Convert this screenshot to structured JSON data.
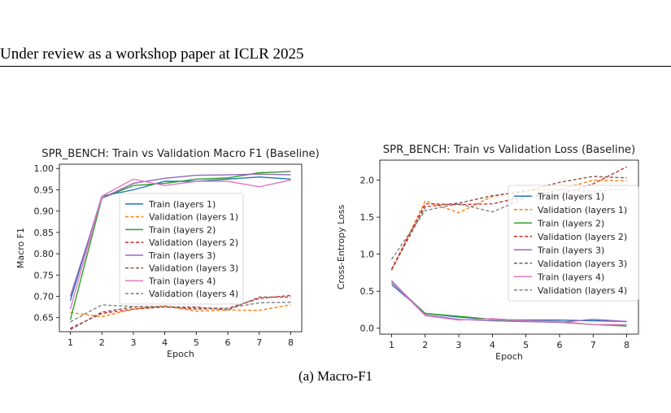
{
  "header": {
    "text": "Under review as a workshop paper at ICLR 2025"
  },
  "caption": {
    "text": "(a)  Macro-F1"
  },
  "chart_data": [
    {
      "type": "line",
      "title": "SPR_BENCH: Train vs Validation Macro F1 (Baseline)",
      "xlabel": "Epoch",
      "ylabel": "Macro F1",
      "x": [
        1,
        2,
        3,
        4,
        5,
        6,
        7,
        8
      ],
      "xlim": [
        0.65,
        8.35
      ],
      "ylim": [
        0.617,
        1.01
      ],
      "yticks": [
        0.65,
        0.7,
        0.75,
        0.8,
        0.85,
        0.9,
        0.95,
        1.0
      ],
      "ytick_labels": [
        "0.65",
        "0.70",
        "0.75",
        "0.80",
        "0.85",
        "0.90",
        "0.95",
        "1.00"
      ],
      "xticks": [
        1,
        2,
        3,
        4,
        5,
        6,
        7,
        8
      ],
      "legend_position": "center",
      "series": [
        {
          "name": "Train (layers 1)",
          "color": "#1f77b4",
          "style": "solid",
          "values": [
            0.69,
            0.935,
            0.95,
            0.97,
            0.97,
            0.975,
            0.98,
            0.975
          ]
        },
        {
          "name": "Validation (layers 1)",
          "color": "#ff7f0e",
          "style": "dashed",
          "values": [
            0.662,
            0.652,
            0.67,
            0.678,
            0.665,
            0.668,
            0.667,
            0.68
          ]
        },
        {
          "name": "Train (layers 2)",
          "color": "#2ca02c",
          "style": "solid",
          "values": [
            0.645,
            0.93,
            0.96,
            0.965,
            0.975,
            0.978,
            0.99,
            0.993
          ]
        },
        {
          "name": "Validation (layers 2)",
          "color": "#d62728",
          "style": "dashed",
          "values": [
            0.625,
            0.66,
            0.67,
            0.675,
            0.67,
            0.672,
            0.695,
            0.702
          ]
        },
        {
          "name": "Train (layers 3)",
          "color": "#9467bd",
          "style": "solid",
          "values": [
            0.7,
            0.93,
            0.965,
            0.977,
            0.984,
            0.985,
            0.987,
            0.985
          ]
        },
        {
          "name": "Validation (layers 3)",
          "color": "#8c564b",
          "style": "dashed",
          "values": [
            0.622,
            0.663,
            0.675,
            0.675,
            0.675,
            0.668,
            0.698,
            0.698
          ]
        },
        {
          "name": "Train (layers 4)",
          "color": "#e377c2",
          "style": "solid",
          "values": [
            0.67,
            0.935,
            0.975,
            0.96,
            0.97,
            0.97,
            0.957,
            0.973
          ]
        },
        {
          "name": "Validation (layers 4)",
          "color": "#7f7f7f",
          "style": "dashed",
          "values": [
            0.64,
            0.68,
            0.676,
            0.676,
            0.673,
            0.672,
            0.685,
            0.686
          ]
        }
      ]
    },
    {
      "type": "line",
      "title": "SPR_BENCH: Train vs Validation Loss (Baseline)",
      "xlabel": "Epoch",
      "ylabel": "Cross-Entropy Loss",
      "x": [
        1,
        2,
        3,
        4,
        5,
        6,
        7,
        8
      ],
      "xlim": [
        0.65,
        8.35
      ],
      "ylim": [
        -0.08,
        2.27
      ],
      "yticks": [
        0.0,
        0.5,
        1.0,
        1.5,
        2.0
      ],
      "ytick_labels": [
        "0.0",
        "0.5",
        "1.0",
        "1.5",
        "2.0"
      ],
      "xticks": [
        1,
        2,
        3,
        4,
        5,
        6,
        7,
        8
      ],
      "legend_position": "center right",
      "series": [
        {
          "name": "Train (layers 1)",
          "color": "#1f77b4",
          "style": "solid",
          "values": [
            0.59,
            0.2,
            0.15,
            0.12,
            0.11,
            0.11,
            0.1,
            0.09
          ]
        },
        {
          "name": "Validation (layers 1)",
          "color": "#ff7f0e",
          "style": "dashed",
          "values": [
            0.78,
            1.72,
            1.56,
            1.78,
            1.86,
            1.87,
            2.0,
            1.99
          ]
        },
        {
          "name": "Train (layers 2)",
          "color": "#2ca02c",
          "style": "solid",
          "values": [
            0.62,
            0.2,
            0.16,
            0.12,
            0.1,
            0.08,
            0.05,
            0.03
          ]
        },
        {
          "name": "Validation (layers 2)",
          "color": "#d62728",
          "style": "dashed",
          "values": [
            0.8,
            1.68,
            1.67,
            1.68,
            1.78,
            1.8,
            1.95,
            2.18
          ]
        },
        {
          "name": "Train (layers 3)",
          "color": "#9467bd",
          "style": "solid",
          "values": [
            0.64,
            0.18,
            0.12,
            0.1,
            0.09,
            0.08,
            0.12,
            0.09
          ]
        },
        {
          "name": "Validation (layers 3)",
          "color": "#8c564b",
          "style": "dashed",
          "values": [
            0.79,
            1.64,
            1.69,
            1.79,
            1.85,
            1.97,
            2.05,
            2.03
          ]
        },
        {
          "name": "Train (layers 4)",
          "color": "#e377c2",
          "style": "solid",
          "values": [
            0.63,
            0.17,
            0.11,
            0.13,
            0.1,
            0.09,
            0.05,
            0.05
          ]
        },
        {
          "name": "Validation (layers 4)",
          "color": "#7f7f7f",
          "style": "dashed",
          "values": [
            0.93,
            1.59,
            1.68,
            1.57,
            1.76,
            1.87,
            1.85,
            1.88
          ]
        }
      ]
    }
  ]
}
